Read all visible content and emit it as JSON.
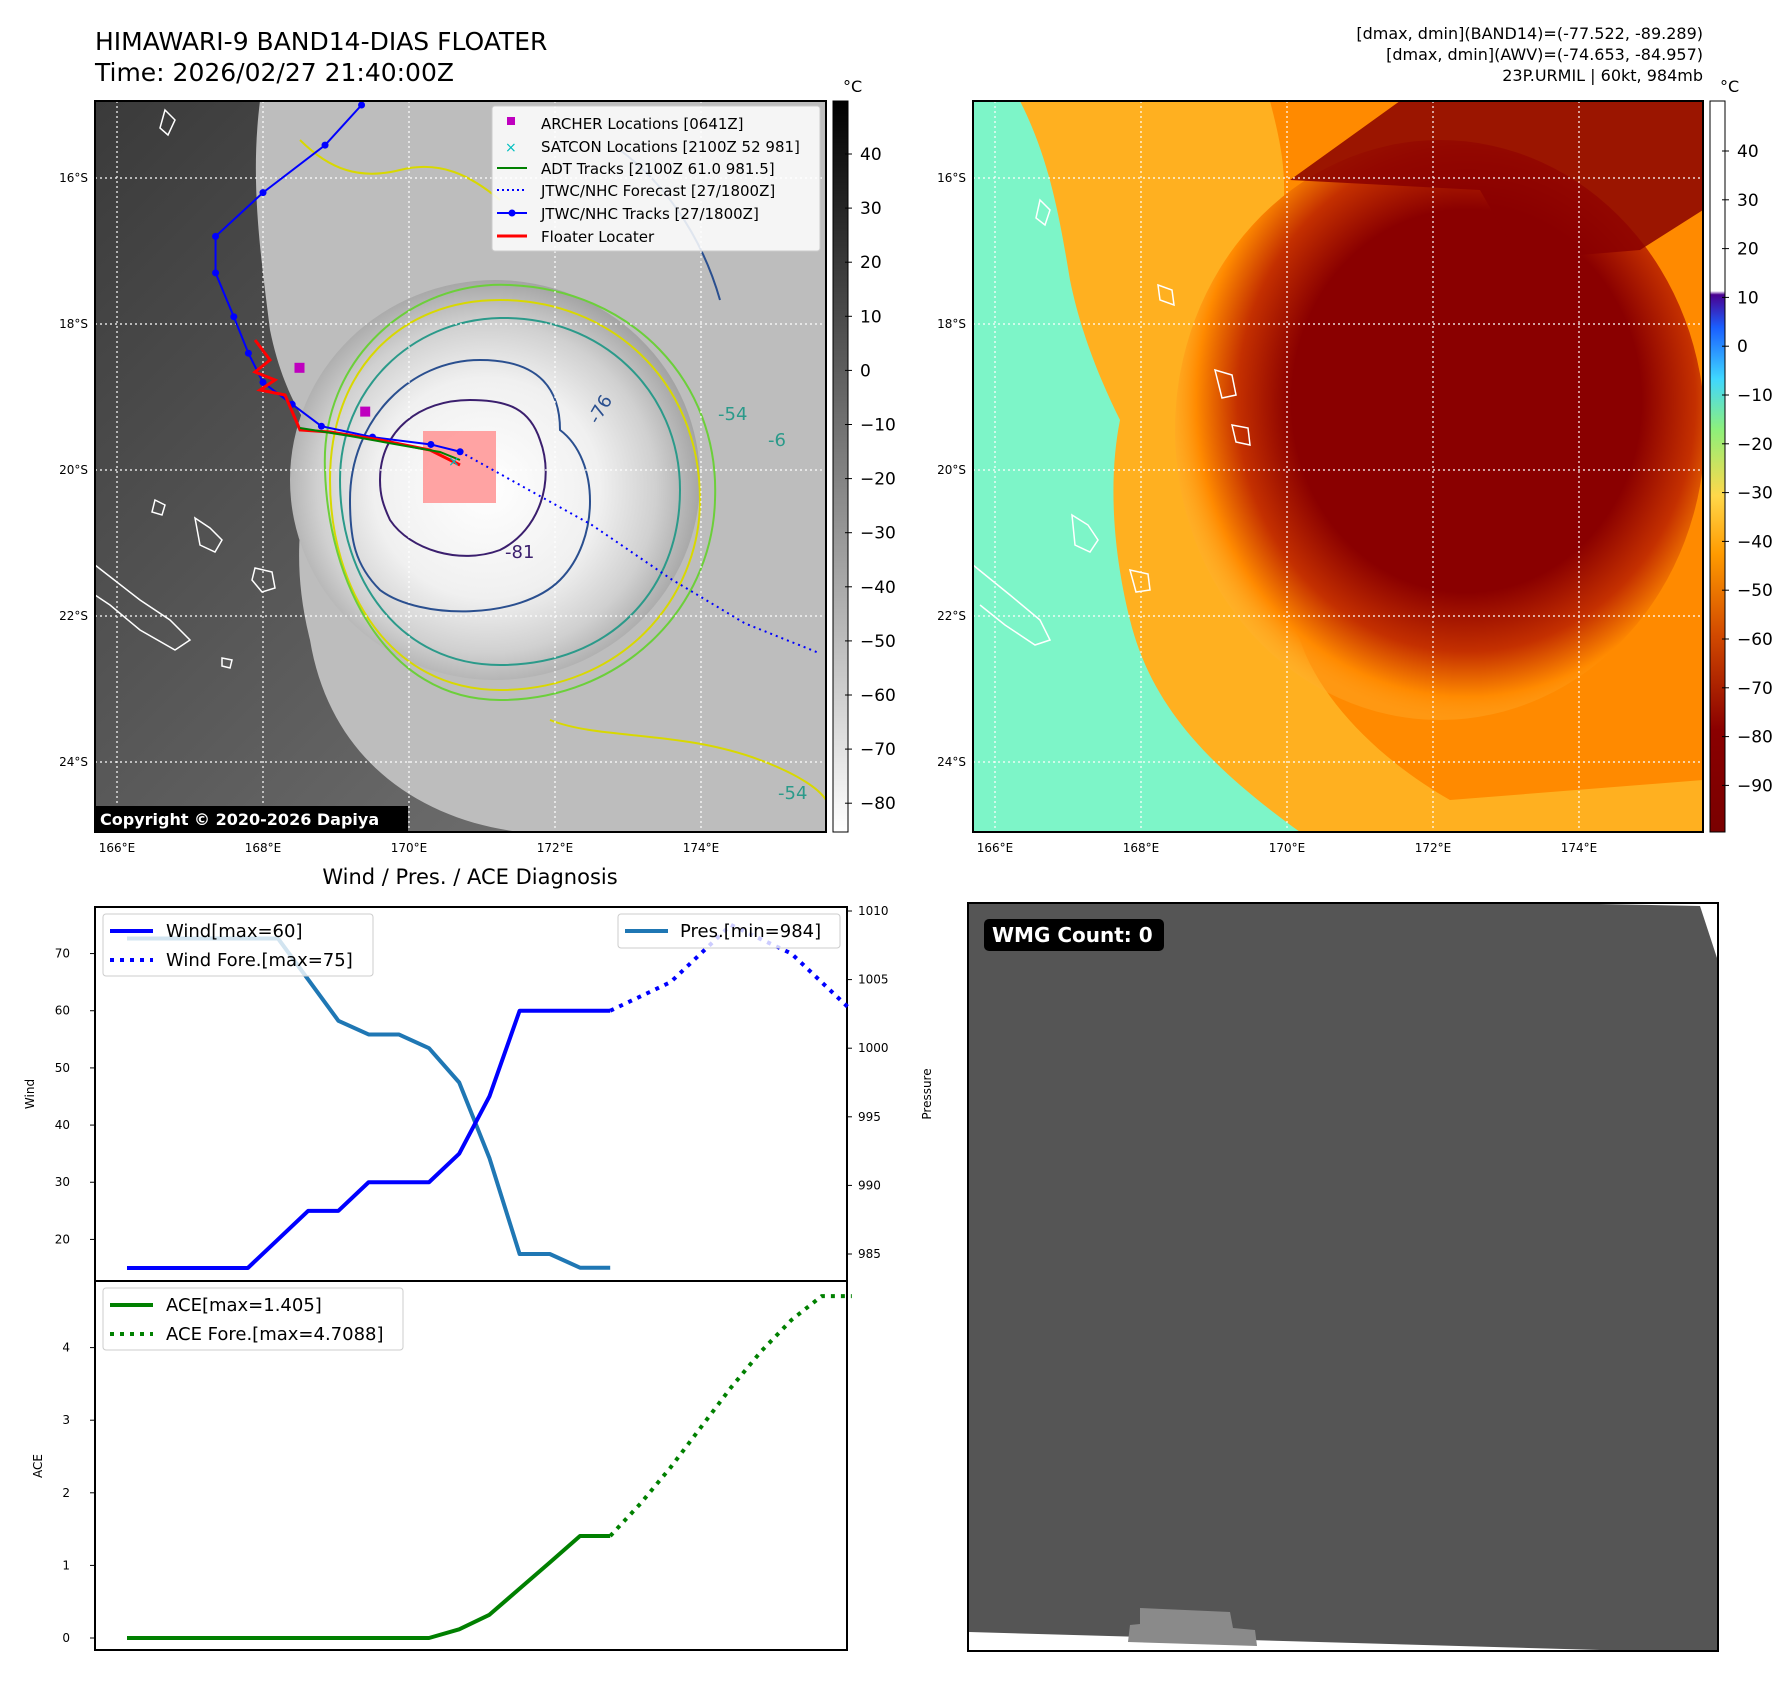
{
  "header": {
    "title_line1": "HIMAWARI-9 BAND14-DIAS FLOATER",
    "title_line2": "Time: 2026/02/27 21:40:00Z",
    "info_line1": "[dmax, dmin](BAND14)=(-77.522, -89.289)",
    "info_line2": "[dmax, dmin](AWV)=(-74.653, -84.957)",
    "info_line3": "23P.URMIL | 60kt, 984mb"
  },
  "copyright": "Copyright © 2020-2026 Dapiya",
  "unit_label": "°C",
  "colors": {
    "wind": "#0000ff",
    "pressure": "#1f77b4",
    "ace": "#008000",
    "best_track": "#0000ff",
    "floater": "#ff0000",
    "archer": "#bf00bf",
    "satcon": "#00bfbf",
    "adt": "#008000",
    "floater_box": "#ff9999"
  },
  "map": {
    "lon_ticks": [
      "166°E",
      "168°E",
      "170°E",
      "172°E",
      "174°E"
    ],
    "lat_ticks": [
      "16°S",
      "18°S",
      "20°S",
      "22°S",
      "24°S"
    ],
    "legend": [
      {
        "label": "ARCHER Locations [0641Z]",
        "icon": "square-marker"
      },
      {
        "label": "SATCON Locations [2100Z 52 981]",
        "icon": "x-marker"
      },
      {
        "label": "ADT Tracks [2100Z 61.0 981.5]",
        "icon": "solid-line"
      },
      {
        "label": "JTWC/NHC Forecast [27/1800Z]",
        "icon": "dotted-line"
      },
      {
        "label": "JTWC/NHC Tracks [27/1800Z]",
        "icon": "line-with-dots"
      },
      {
        "label": "Floater Locater",
        "icon": "solid-line"
      }
    ],
    "contour_labels": [
      "-76",
      "-81",
      "-54",
      "-54",
      "-6"
    ],
    "best_track": [
      [
        169.35,
        15.0
      ],
      [
        168.85,
        15.55
      ],
      [
        168.0,
        16.2
      ],
      [
        167.35,
        16.8
      ],
      [
        167.35,
        17.3
      ],
      [
        167.6,
        17.9
      ],
      [
        167.8,
        18.4
      ],
      [
        168.0,
        18.8
      ],
      [
        168.4,
        19.1
      ],
      [
        168.8,
        19.4
      ],
      [
        169.5,
        19.55
      ],
      [
        170.3,
        19.65
      ],
      [
        170.7,
        19.75
      ]
    ],
    "forecast_track": [
      [
        170.7,
        19.75
      ],
      [
        171.6,
        20.25
      ],
      [
        172.5,
        20.75
      ],
      [
        173.6,
        21.5
      ],
      [
        174.6,
        22.1
      ],
      [
        175.6,
        22.5
      ]
    ],
    "archer_points": [
      [
        168.5,
        18.6
      ],
      [
        169.4,
        19.2
      ]
    ],
    "colorbar_gray_ticks": [
      "40",
      "30",
      "20",
      "10",
      "0",
      "−10",
      "−20",
      "−30",
      "−40",
      "−50",
      "−60",
      "−70",
      "−80"
    ],
    "colorbar_color_ticks": [
      "40",
      "30",
      "20",
      "10",
      "0",
      "−10",
      "−20",
      "−30",
      "−40",
      "−50",
      "−60",
      "−70",
      "−80",
      "−90"
    ]
  },
  "chart_data": [
    {
      "type": "line",
      "title": "Wind / Pres. / ACE Diagnosis",
      "ylabel": "Wind",
      "ylabel_right": "Pressure",
      "ylim": [
        12,
        78
      ],
      "ylim_right": [
        983,
        1010
      ],
      "yticks": [
        20,
        30,
        40,
        50,
        60,
        70
      ],
      "yticks_right": [
        985,
        990,
        995,
        1000,
        1005,
        1010
      ],
      "legend_wind": [
        "Wind[max=60]",
        "Wind Fore.[max=75]"
      ],
      "legend_pres": [
        "Pres.[min=984]"
      ],
      "x": [
        0,
        1,
        2,
        3,
        4,
        5,
        6,
        7,
        8,
        9,
        10,
        11,
        12,
        13,
        14,
        15,
        16
      ],
      "series": [
        {
          "name": "Wind[max=60]",
          "x": [
            0,
            1,
            2,
            3,
            4,
            5,
            6,
            7,
            8,
            9,
            10,
            11,
            12,
            13,
            14,
            15,
            16
          ],
          "values": [
            15,
            15,
            15,
            15,
            15,
            20,
            25,
            25,
            30,
            30,
            30,
            35,
            45,
            60,
            60,
            60,
            60
          ]
        },
        {
          "name": "Wind Fore.[max=75]",
          "x": [
            16,
            17,
            18,
            19,
            20,
            21,
            22,
            23,
            24
          ],
          "values": [
            60,
            62.5,
            65,
            70,
            75,
            72.5,
            70,
            65,
            60
          ]
        },
        {
          "name": "Pres.[min=984]",
          "x": [
            0,
            1,
            2,
            3,
            4,
            5,
            6,
            7,
            8,
            9,
            10,
            11,
            12,
            13,
            14,
            15,
            16
          ],
          "values": [
            1008,
            1008,
            1008,
            1008,
            1008,
            1008,
            1005,
            1002,
            1001,
            1001,
            1000,
            997.5,
            992,
            985,
            985,
            984,
            984
          ]
        }
      ]
    },
    {
      "type": "line",
      "ylabel": "ACE",
      "ylim": [
        -0.1,
        4.95
      ],
      "yticks": [
        0,
        1,
        2,
        3,
        4
      ],
      "legend": [
        "ACE[max=1.405]",
        "ACE Fore.[max=4.7088]"
      ],
      "series": [
        {
          "name": "ACE[max=1.405]",
          "x": [
            0,
            1,
            2,
            3,
            4,
            5,
            6,
            7,
            8,
            9,
            10,
            11,
            12,
            13,
            14,
            15,
            16
          ],
          "values": [
            0,
            0,
            0,
            0,
            0,
            0,
            0,
            0,
            0,
            0,
            0,
            0.12,
            0.32,
            0.68,
            1.04,
            1.405,
            1.405
          ]
        },
        {
          "name": "ACE Fore.[max=4.7088]",
          "x": [
            16,
            17,
            18,
            19,
            20,
            21,
            22,
            23,
            24
          ],
          "values": [
            1.405,
            1.85,
            2.35,
            2.9,
            3.45,
            3.95,
            4.38,
            4.7088,
            4.7088
          ]
        }
      ]
    }
  ],
  "wmg": {
    "label": "WMG Count: 0"
  }
}
